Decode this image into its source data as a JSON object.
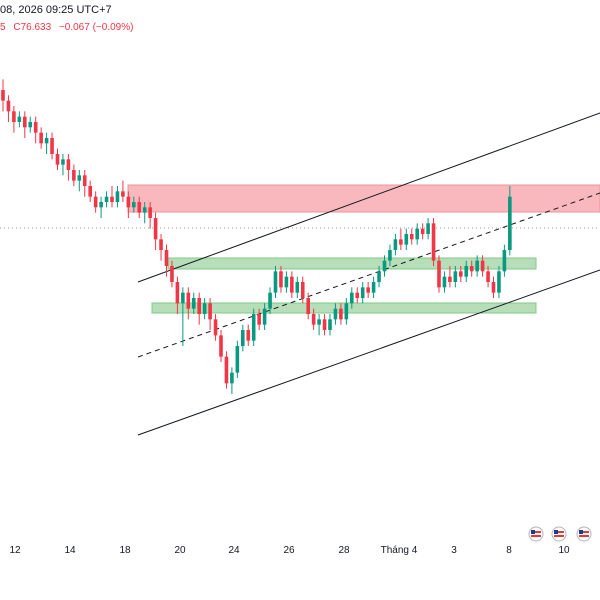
{
  "header": {
    "date_fragment": "08, 2026 09:25 UTC+7",
    "ohlc_fragment": {
      "o_tail": "5",
      "close": "C76.633",
      "change": "−0.067 (−0.09%)"
    }
  },
  "colors": {
    "up": "#089981",
    "down": "#f23645",
    "resistance_zone": "#f7a1a9",
    "support_zone": "#a5d6a7",
    "channel_line": "#131722",
    "text": "#131722",
    "change_red": "#f23645"
  },
  "chart_data": {
    "type": "candlestick",
    "x_tick_labels": [
      "12",
      "14",
      "18",
      "20",
      "24",
      "26",
      "28",
      "Tháng 4",
      "3",
      "8",
      "10"
    ],
    "annotations": {
      "resistance_zone": "red rectangle right side",
      "support_zones": 2,
      "channel": "ascending parallel channel with dashed midline",
      "event_icons": [
        "us-flag-icon",
        "us-flag-icon",
        "us-flag-icon"
      ]
    },
    "candles": [
      [
        100,
        98,
        102,
        96
      ],
      [
        98,
        96,
        99,
        94
      ],
      [
        96,
        94,
        97,
        92
      ],
      [
        94,
        95,
        96,
        93
      ],
      [
        95,
        93,
        96,
        91
      ],
      [
        93,
        94,
        95,
        92
      ],
      [
        94,
        92,
        95,
        90
      ],
      [
        92,
        90,
        93,
        89
      ],
      [
        90,
        91,
        92,
        88
      ],
      [
        91,
        88,
        92,
        87
      ],
      [
        88,
        86,
        89,
        85
      ],
      [
        86,
        87,
        88,
        84
      ],
      [
        87,
        85,
        88,
        83
      ],
      [
        85,
        83,
        86,
        82
      ],
      [
        83,
        84,
        85,
        81
      ],
      [
        84,
        82,
        85,
        80
      ],
      [
        82,
        80,
        83,
        79
      ],
      [
        80,
        78,
        81,
        77
      ],
      [
        78,
        79,
        80,
        76
      ],
      [
        79,
        80,
        81,
        78
      ],
      [
        80,
        79,
        82,
        78
      ],
      [
        79,
        81,
        82,
        78
      ],
      [
        81,
        80,
        83,
        79
      ],
      [
        80,
        78,
        81,
        76
      ],
      [
        78,
        79,
        80,
        77
      ],
      [
        79,
        77,
        80,
        76
      ],
      [
        77,
        78,
        79,
        75
      ],
      [
        78,
        76,
        79,
        74
      ],
      [
        76,
        72,
        77,
        70
      ],
      [
        72,
        70,
        73,
        68
      ],
      [
        70,
        67,
        71,
        65
      ],
      [
        67,
        64,
        68,
        63
      ],
      [
        64,
        60,
        65,
        58
      ],
      [
        60,
        62,
        63,
        52
      ],
      [
        62,
        59,
        63,
        57
      ],
      [
        59,
        61,
        62,
        58
      ],
      [
        61,
        58,
        62,
        56
      ],
      [
        58,
        60,
        61,
        57
      ],
      [
        60,
        57,
        61,
        55
      ],
      [
        57,
        54,
        58,
        53
      ],
      [
        54,
        50,
        55,
        49
      ],
      [
        50,
        45,
        51,
        44
      ],
      [
        45,
        47,
        48,
        43
      ],
      [
        47,
        52,
        53,
        46
      ],
      [
        52,
        55,
        56,
        51
      ],
      [
        55,
        53,
        56,
        52
      ],
      [
        53,
        58,
        59,
        52
      ],
      [
        58,
        56,
        59,
        55
      ],
      [
        56,
        59,
        60,
        55
      ],
      [
        59,
        62,
        63,
        58
      ],
      [
        62,
        66,
        67,
        61
      ],
      [
        66,
        63,
        67,
        62
      ],
      [
        63,
        65,
        66,
        62
      ],
      [
        65,
        62,
        66,
        61
      ],
      [
        62,
        64,
        65,
        61
      ],
      [
        64,
        61,
        65,
        60
      ],
      [
        61,
        58,
        62,
        57
      ],
      [
        58,
        56,
        59,
        55
      ],
      [
        56,
        57,
        58,
        54
      ],
      [
        57,
        55,
        58,
        54
      ],
      [
        55,
        57,
        58,
        54
      ],
      [
        57,
        59,
        60,
        56
      ],
      [
        59,
        57,
        60,
        56
      ],
      [
        57,
        60,
        61,
        56
      ],
      [
        60,
        62,
        63,
        59
      ],
      [
        62,
        61,
        63,
        60
      ],
      [
        61,
        63,
        64,
        60
      ],
      [
        63,
        62,
        64,
        61
      ],
      [
        62,
        64,
        65,
        61
      ],
      [
        64,
        66,
        67,
        63
      ],
      [
        66,
        68,
        69,
        65
      ],
      [
        68,
        70,
        71,
        67
      ],
      [
        70,
        72,
        73,
        69
      ],
      [
        72,
        71,
        74,
        70
      ],
      [
        71,
        73,
        74,
        70
      ],
      [
        73,
        72,
        74,
        71
      ],
      [
        72,
        74,
        75,
        71
      ],
      [
        74,
        73,
        75,
        72
      ],
      [
        73,
        75,
        76,
        72
      ],
      [
        75,
        68,
        76,
        67
      ],
      [
        68,
        63,
        69,
        62
      ],
      [
        63,
        65,
        66,
        62
      ],
      [
        65,
        64,
        67,
        63
      ],
      [
        64,
        66,
        67,
        63
      ],
      [
        66,
        65,
        67,
        64
      ],
      [
        65,
        67,
        68,
        64
      ],
      [
        67,
        66,
        68,
        65
      ],
      [
        66,
        68,
        69,
        65
      ],
      [
        68,
        66,
        69,
        65
      ],
      [
        66,
        64,
        67,
        63
      ],
      [
        64,
        62,
        65,
        61
      ],
      [
        62,
        66,
        67,
        61
      ],
      [
        66,
        70,
        71,
        65
      ],
      [
        70,
        80,
        82,
        69
      ]
    ]
  }
}
